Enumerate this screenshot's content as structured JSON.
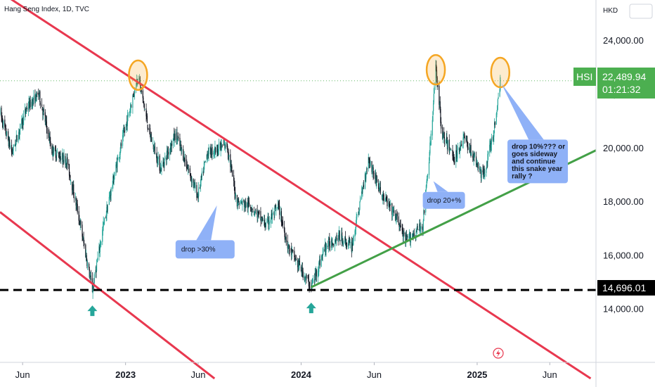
{
  "header": {
    "title": "Hang Seng Index, 1D, TVC",
    "currency": "HKD"
  },
  "price_panel": {
    "symbol": "HSI",
    "last_price": "22,489.94",
    "countdown": "01:21:32",
    "support_price": "14,696.01"
  },
  "colors": {
    "channel": "#e8384f",
    "trendline": "#43a047",
    "support_line": "#000000",
    "candle_up": "#26a69a",
    "candle_down": "#131722",
    "highlight_ellipse": "#f5a623",
    "callout_fill": "#8fb1f7",
    "price_tag": "#4caf50",
    "support_tag": "#000000",
    "arrow": "#26a69a"
  },
  "annotations": {
    "drop_30": "drop >30%",
    "drop_20": "drop 20+%",
    "drop_10_lines": [
      "drop 10%??? or",
      "goes sideway",
      "and continue",
      "this snake year",
      "rally ?"
    ]
  },
  "chart_data": {
    "type": "candlestick",
    "title": "Hang Seng Index, 1D, TVC",
    "y_unit": "HKD",
    "ylim": [
      12000,
      25500
    ],
    "y_ticks": [
      "14,000.00",
      "16,000.00",
      "18,000.00",
      "20,000.00",
      "22,000.00",
      "24,000.00"
    ],
    "y_tick_values": [
      14000,
      16000,
      18000,
      20000,
      22000,
      24000
    ],
    "x_ticks": [
      "Jun",
      "2023",
      "Jun",
      "2024",
      "Jun",
      "2025",
      "Jun"
    ],
    "x_tick_dates": [
      "2022-06-01",
      "2023-01-01",
      "2023-06-01",
      "2024-01-01",
      "2024-06-01",
      "2025-01-01",
      "2025-06-01"
    ],
    "xlim": [
      "2022-04-15",
      "2025-09-05"
    ],
    "price_path": [
      [
        "2022-04-15",
        21300
      ],
      [
        "2022-05-10",
        19800
      ],
      [
        "2022-06-10",
        21500
      ],
      [
        "2022-07-05",
        22000
      ],
      [
        "2022-08-01",
        19900
      ],
      [
        "2022-09-01",
        19500
      ],
      [
        "2022-09-25",
        17500
      ],
      [
        "2022-10-24",
        14696
      ],
      [
        "2022-11-15",
        17000
      ],
      [
        "2022-12-15",
        19500
      ],
      [
        "2023-01-27",
        22700
      ],
      [
        "2023-02-20",
        20500
      ],
      [
        "2023-03-15",
        19200
      ],
      [
        "2023-04-15",
        20500
      ],
      [
        "2023-05-31",
        18200
      ],
      [
        "2023-06-20",
        19800
      ],
      [
        "2023-07-31",
        20100
      ],
      [
        "2023-08-20",
        18000
      ],
      [
        "2023-09-20",
        17800
      ],
      [
        "2023-10-20",
        17100
      ],
      [
        "2023-11-15",
        17800
      ],
      [
        "2023-12-05",
        16300
      ],
      [
        "2024-01-22",
        14800
      ],
      [
        "2024-02-20",
        16300
      ],
      [
        "2024-03-20",
        16700
      ],
      [
        "2024-04-15",
        16300
      ],
      [
        "2024-05-20",
        19600
      ],
      [
        "2024-06-15",
        18300
      ],
      [
        "2024-07-20",
        17300
      ],
      [
        "2024-08-05",
        16500
      ],
      [
        "2024-09-10",
        17100
      ],
      [
        "2024-09-30",
        21000
      ],
      [
        "2024-10-07",
        23100
      ],
      [
        "2024-10-20",
        20500
      ],
      [
        "2024-11-15",
        19600
      ],
      [
        "2024-12-05",
        20400
      ],
      [
        "2025-01-13",
        18900
      ],
      [
        "2025-02-05",
        20600
      ],
      [
        "2025-02-18",
        22490
      ]
    ],
    "channel_lines": [
      {
        "name": "upper",
        "from": [
          "2022-04-15",
          25800
        ],
        "to": [
          "2025-08-25",
          11400
        ]
      },
      {
        "name": "lower",
        "from": [
          "2022-04-15",
          17600
        ],
        "to": [
          "2023-07-05",
          11400
        ]
      }
    ],
    "trendline": {
      "from": [
        "2024-01-22",
        14800
      ],
      "to": [
        "2025-09-05",
        19900
      ]
    },
    "support_level": 14696.01,
    "last_price": 22489.94,
    "highlights": [
      {
        "date": "2023-01-27",
        "price": 22700
      },
      {
        "date": "2024-10-07",
        "price": 22900
      },
      {
        "date": "2025-02-18",
        "price": 22800
      }
    ],
    "arrows": [
      {
        "date": "2022-10-24",
        "price": 14696
      },
      {
        "date": "2024-01-22",
        "price": 14800
      }
    ],
    "callouts": [
      {
        "text_key": "drop_30",
        "anchor": [
          "2023-07-10",
          17850
        ],
        "box_date": "2023-04-15",
        "box_price": 16550
      },
      {
        "text_key": "drop_20",
        "anchor": [
          "2024-10-02",
          18750
        ],
        "box_date": "2024-09-10",
        "box_price": 18350
      },
      {
        "text_key": "drop_10_lines",
        "anchor": [
          "2025-02-20",
          22400
        ],
        "box_date": "2025-03-05",
        "box_price": 20300
      }
    ]
  }
}
